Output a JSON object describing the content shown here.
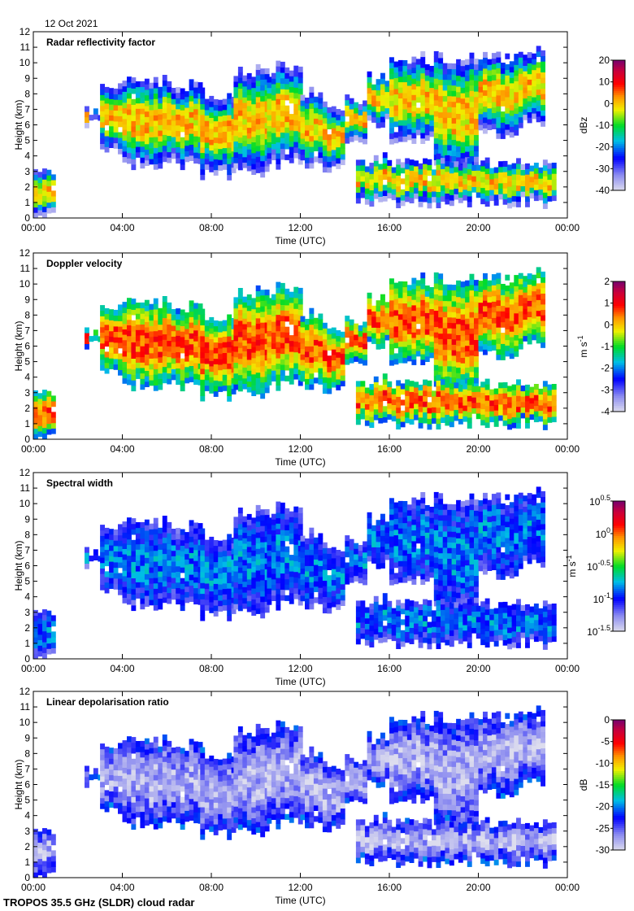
{
  "date": "12 Oct 2021",
  "footer": "TROPOS 35.5 GHz (SLDR) cloud radar",
  "chart_data": [
    {
      "type": "heatmap",
      "title": "Radar reflectivity factor",
      "xlabel": "Time (UTC)",
      "ylabel": "Height (km)",
      "xlim": [
        "00:00",
        "24:00"
      ],
      "ylim": [
        0,
        12
      ],
      "colorbar": {
        "unit": "dBz",
        "range": [
          -40,
          20
        ],
        "ticks": [
          "20",
          "10",
          "0",
          "-10",
          "-20",
          "-30",
          "-40"
        ]
      },
      "core_value": 0,
      "edge_value": -32
    },
    {
      "type": "heatmap",
      "title": "Doppler velocity",
      "xlabel": "Time (UTC)",
      "ylabel": "Height (km)",
      "xlim": [
        "00:00",
        "24:00"
      ],
      "ylim": [
        0,
        12
      ],
      "colorbar": {
        "unit": "m s-1",
        "unit_base": "m s",
        "unit_sup": "-1",
        "range": [
          -4,
          2
        ],
        "ticks": [
          "2",
          "1",
          "0",
          "-1",
          "-2",
          "-3",
          "-4"
        ]
      },
      "core_value": 0.6,
      "edge_value": -1.8
    },
    {
      "type": "heatmap",
      "title": "Spectral width",
      "xlabel": "Time (UTC)",
      "ylabel": "Height (km)",
      "xlim": [
        "00:00",
        "24:00"
      ],
      "ylim": [
        0,
        12
      ],
      "colorbar": {
        "unit": "m s-1",
        "unit_base": "m s",
        "unit_sup": "-1",
        "scale": "log",
        "range": [
          -1.5,
          0.5
        ],
        "ticks": [
          "0.5",
          "0",
          "-0.5",
          "-1",
          "-1.5"
        ]
      },
      "core_value": -0.85,
      "edge_value": -1.1
    },
    {
      "type": "heatmap",
      "title": "Linear depolarisation ratio",
      "xlabel": "Time (UTC)",
      "ylabel": "Height (km)",
      "xlim": [
        "00:00",
        "24:00"
      ],
      "ylim": [
        0,
        12
      ],
      "colorbar": {
        "unit": "dB",
        "range": [
          -30,
          0
        ],
        "ticks": [
          "0",
          "-5",
          "-10",
          "-15",
          "-20",
          "-25",
          "-30"
        ]
      },
      "core_value": -28,
      "edge_value": -22
    }
  ],
  "x_ticks": [
    "00:00",
    "04:00",
    "08:00",
    "12:00",
    "16:00",
    "20:00",
    "00:00"
  ],
  "y_ticks": [
    "0",
    "1",
    "2",
    "3",
    "4",
    "5",
    "6",
    "7",
    "8",
    "9",
    "10",
    "11",
    "12"
  ],
  "cloud_layers_hours_km": [
    {
      "t": [
        0,
        0.9
      ],
      "base": 0,
      "top": 3
    },
    {
      "t": [
        2.3,
        3
      ],
      "base": 6,
      "top": 6.8
    },
    {
      "t": [
        3,
        4
      ],
      "base": 4.5,
      "top": 8.3
    },
    {
      "t": [
        4,
        6
      ],
      "base": 3.5,
      "top": 8.7
    },
    {
      "t": [
        6,
        7.5
      ],
      "base": 3.5,
      "top": 8.5
    },
    {
      "t": [
        7.5,
        9
      ],
      "base": 2.8,
      "top": 7.8
    },
    {
      "t": [
        9,
        10.5
      ],
      "base": 3,
      "top": 9.3
    },
    {
      "t": [
        10.5,
        12
      ],
      "base": 3.5,
      "top": 9.5
    },
    {
      "t": [
        12,
        13
      ],
      "base": 3.5,
      "top": 8
    },
    {
      "t": [
        13,
        14
      ],
      "base": 3.3,
      "top": 7
    },
    {
      "t": [
        14,
        15
      ],
      "base": 5,
      "top": 7.5
    },
    {
      "t": [
        15,
        16
      ],
      "base": 6,
      "top": 9
    },
    {
      "t": [
        16,
        18
      ],
      "base": 5,
      "top": 10
    },
    {
      "t": [
        18,
        20
      ],
      "base": 3,
      "top": 10.2
    },
    {
      "t": [
        20,
        22
      ],
      "base": 5.5,
      "top": 10.3
    },
    {
      "t": [
        22,
        23
      ],
      "base": 6,
      "top": 10.5
    },
    {
      "t": [
        14.5,
        23.5
      ],
      "base": 1,
      "top": 3.5
    }
  ]
}
